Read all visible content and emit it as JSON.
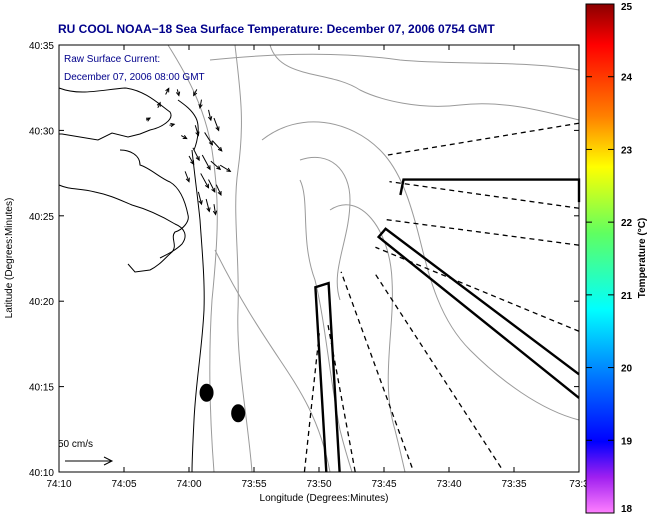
{
  "chart_data": {
    "type": "map",
    "title": "RU COOL  NOAA−18  Sea Surface Temperature:  December 07, 2006 0754 GMT",
    "xlabel": "Longitude (Degrees:Minutes)",
    "ylabel": "Latitude (Degrees:Minutes)",
    "x_tick_labels": [
      "74:10",
      "74:05",
      "74:00",
      "73:55",
      "73:50",
      "73:45",
      "73:40",
      "73:35",
      "73:3"
    ],
    "y_tick_labels": [
      "40:35",
      "40:30",
      "40:25",
      "40:20",
      "40:15",
      "40:10"
    ],
    "xlim_min": [
      -74.1667,
      -73.5
    ],
    "ylim_min": [
      40.1667,
      40.5833
    ],
    "legend": {
      "line1": "Raw Surface Current:",
      "line2": "December 07, 2006 08:00 GMT"
    },
    "scale_label": "50 cm/s",
    "colorbar": {
      "label": "Temperature (°C)",
      "ticks": [
        "25",
        "24",
        "23",
        "22",
        "21",
        "20",
        "19",
        "18"
      ],
      "min": 18,
      "max": 25
    },
    "current_vectors": [
      {
        "lon": -73.99,
        "lat": 40.54,
        "dlon": -0.004,
        "dlat": -0.006
      },
      {
        "lon": -73.984,
        "lat": 40.53,
        "dlon": -0.002,
        "dlat": -0.008
      },
      {
        "lon": -73.975,
        "lat": 40.52,
        "dlon": 0.003,
        "dlat": -0.01
      },
      {
        "lon": -73.968,
        "lat": 40.512,
        "dlon": 0.006,
        "dlat": -0.012
      },
      {
        "lon": -73.992,
        "lat": 40.505,
        "dlon": 0.004,
        "dlat": -0.01
      },
      {
        "lon": -73.98,
        "lat": 40.498,
        "dlon": 0.01,
        "dlat": -0.012
      },
      {
        "lon": -73.97,
        "lat": 40.49,
        "dlon": 0.012,
        "dlat": -0.01
      },
      {
        "lon": -73.995,
        "lat": 40.483,
        "dlon": 0.008,
        "dlat": -0.012
      },
      {
        "lon": -73.983,
        "lat": 40.476,
        "dlon": 0.01,
        "dlat": -0.014
      },
      {
        "lon": -73.972,
        "lat": 40.47,
        "dlon": 0.012,
        "dlat": -0.008
      },
      {
        "lon": -73.96,
        "lat": 40.466,
        "dlon": 0.013,
        "dlat": -0.006
      },
      {
        "lon": -73.985,
        "lat": 40.458,
        "dlon": 0.01,
        "dlat": -0.014
      },
      {
        "lon": -73.975,
        "lat": 40.452,
        "dlon": 0.008,
        "dlat": -0.012
      },
      {
        "lon": -73.965,
        "lat": 40.447,
        "dlon": 0.006,
        "dlat": -0.01
      },
      {
        "lon": -73.988,
        "lat": 40.44,
        "dlon": 0.004,
        "dlat": -0.012
      },
      {
        "lon": -73.978,
        "lat": 40.433,
        "dlon": 0.004,
        "dlat": -0.012
      },
      {
        "lon": -73.968,
        "lat": 40.428,
        "dlon": 0.002,
        "dlat": -0.01
      },
      {
        "lon": -74.015,
        "lat": 40.54,
        "dlon": 0.002,
        "dlat": -0.006
      },
      {
        "lon": -74.03,
        "lat": 40.535,
        "dlon": 0.004,
        "dlat": 0.006
      },
      {
        "lon": -74.04,
        "lat": 40.522,
        "dlon": 0.003,
        "dlat": 0.005
      },
      {
        "lon": -74.055,
        "lat": 40.51,
        "dlon": 0.005,
        "dlat": 0.002
      },
      {
        "lon": -74.025,
        "lat": 40.505,
        "dlon": 0.006,
        "dlat": 0.001
      },
      {
        "lon": -74.01,
        "lat": 40.495,
        "dlon": 0.007,
        "dlat": -0.003
      },
      {
        "lon": -74.0,
        "lat": 40.475,
        "dlon": 0.006,
        "dlat": -0.008
      },
      {
        "lon": -74.005,
        "lat": 40.46,
        "dlon": 0.005,
        "dlat": -0.01
      }
    ],
    "markers": [
      {
        "lon": -73.9775,
        "lat": 40.244
      },
      {
        "lon": -73.937,
        "lat": 40.224
      }
    ],
    "radials": [
      {
        "lon1": -73.852,
        "lat1": 40.167,
        "lon2": -73.833,
        "lat2": 40.302
      },
      {
        "lon1": -73.787,
        "lat1": 40.167,
        "lon2": -73.822,
        "lat2": 40.311
      },
      {
        "lon1": -73.714,
        "lat1": 40.171,
        "lon2": -73.805,
        "lat2": 40.362
      },
      {
        "lon1": -73.6,
        "lat1": 40.171,
        "lon2": -73.763,
        "lat2": 40.362
      },
      {
        "lon1": -73.5,
        "lat1": 40.304,
        "lon2": -73.761,
        "lat2": 40.386
      },
      {
        "lon1": -73.5,
        "lat1": 40.388,
        "lon2": -73.748,
        "lat2": 40.413
      },
      {
        "lon1": -73.5,
        "lat1": 40.424,
        "lon2": -73.743,
        "lat2": 40.45
      },
      {
        "lon1": -73.5,
        "lat1": 40.507,
        "lon2": -73.745,
        "lat2": 40.476
      }
    ],
    "beams": [
      [
        [
          -73.824,
          40.167
        ],
        [
          -73.838,
          40.347
        ],
        [
          -73.821,
          40.351
        ],
        [
          -73.807,
          40.167
        ]
      ],
      [
        [
          -73.5,
          40.239
        ],
        [
          -73.757,
          40.396
        ],
        [
          -73.748,
          40.404
        ],
        [
          -73.5,
          40.262
        ]
      ],
      [
        [
          -73.729,
          40.437
        ],
        [
          -73.725,
          40.452
        ],
        [
          -73.5,
          40.452
        ],
        [
          -73.5,
          40.43
        ]
      ]
    ]
  },
  "colors": {
    "title": "#00008b",
    "contour": "#9a9a9a",
    "coast": "#000000",
    "radar_lines": "#000000"
  }
}
